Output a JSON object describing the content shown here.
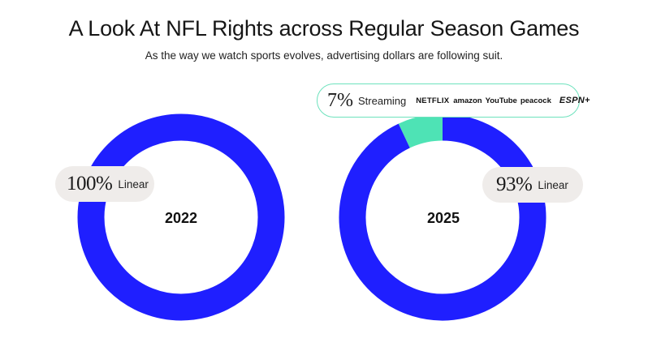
{
  "header": {
    "title": "A Look At NFL Rights across Regular Season Games",
    "subtitle": "As the way we watch sports evolves, advertising dollars are following suit."
  },
  "chart_data": [
    {
      "type": "pie",
      "title": "2022",
      "slices": [
        {
          "label": "Linear",
          "value": 100,
          "display": "100%",
          "color": "#1f1fff"
        }
      ]
    },
    {
      "type": "pie",
      "title": "2025",
      "slices": [
        {
          "label": "Streaming",
          "value": 7,
          "display": "7%",
          "color": "#4ee3b5"
        },
        {
          "label": "Linear",
          "value": 93,
          "display": "93%",
          "color": "#1f1fff"
        }
      ],
      "streaming_logos": [
        "NETFLIX",
        "amazon",
        "YouTube",
        "peacock",
        "ESPN+"
      ]
    }
  ],
  "colors": {
    "linear": "#1f1fff",
    "streaming": "#4ee3b5",
    "pill_bg": "#efecea",
    "pill_border": "#6ee2bd"
  }
}
